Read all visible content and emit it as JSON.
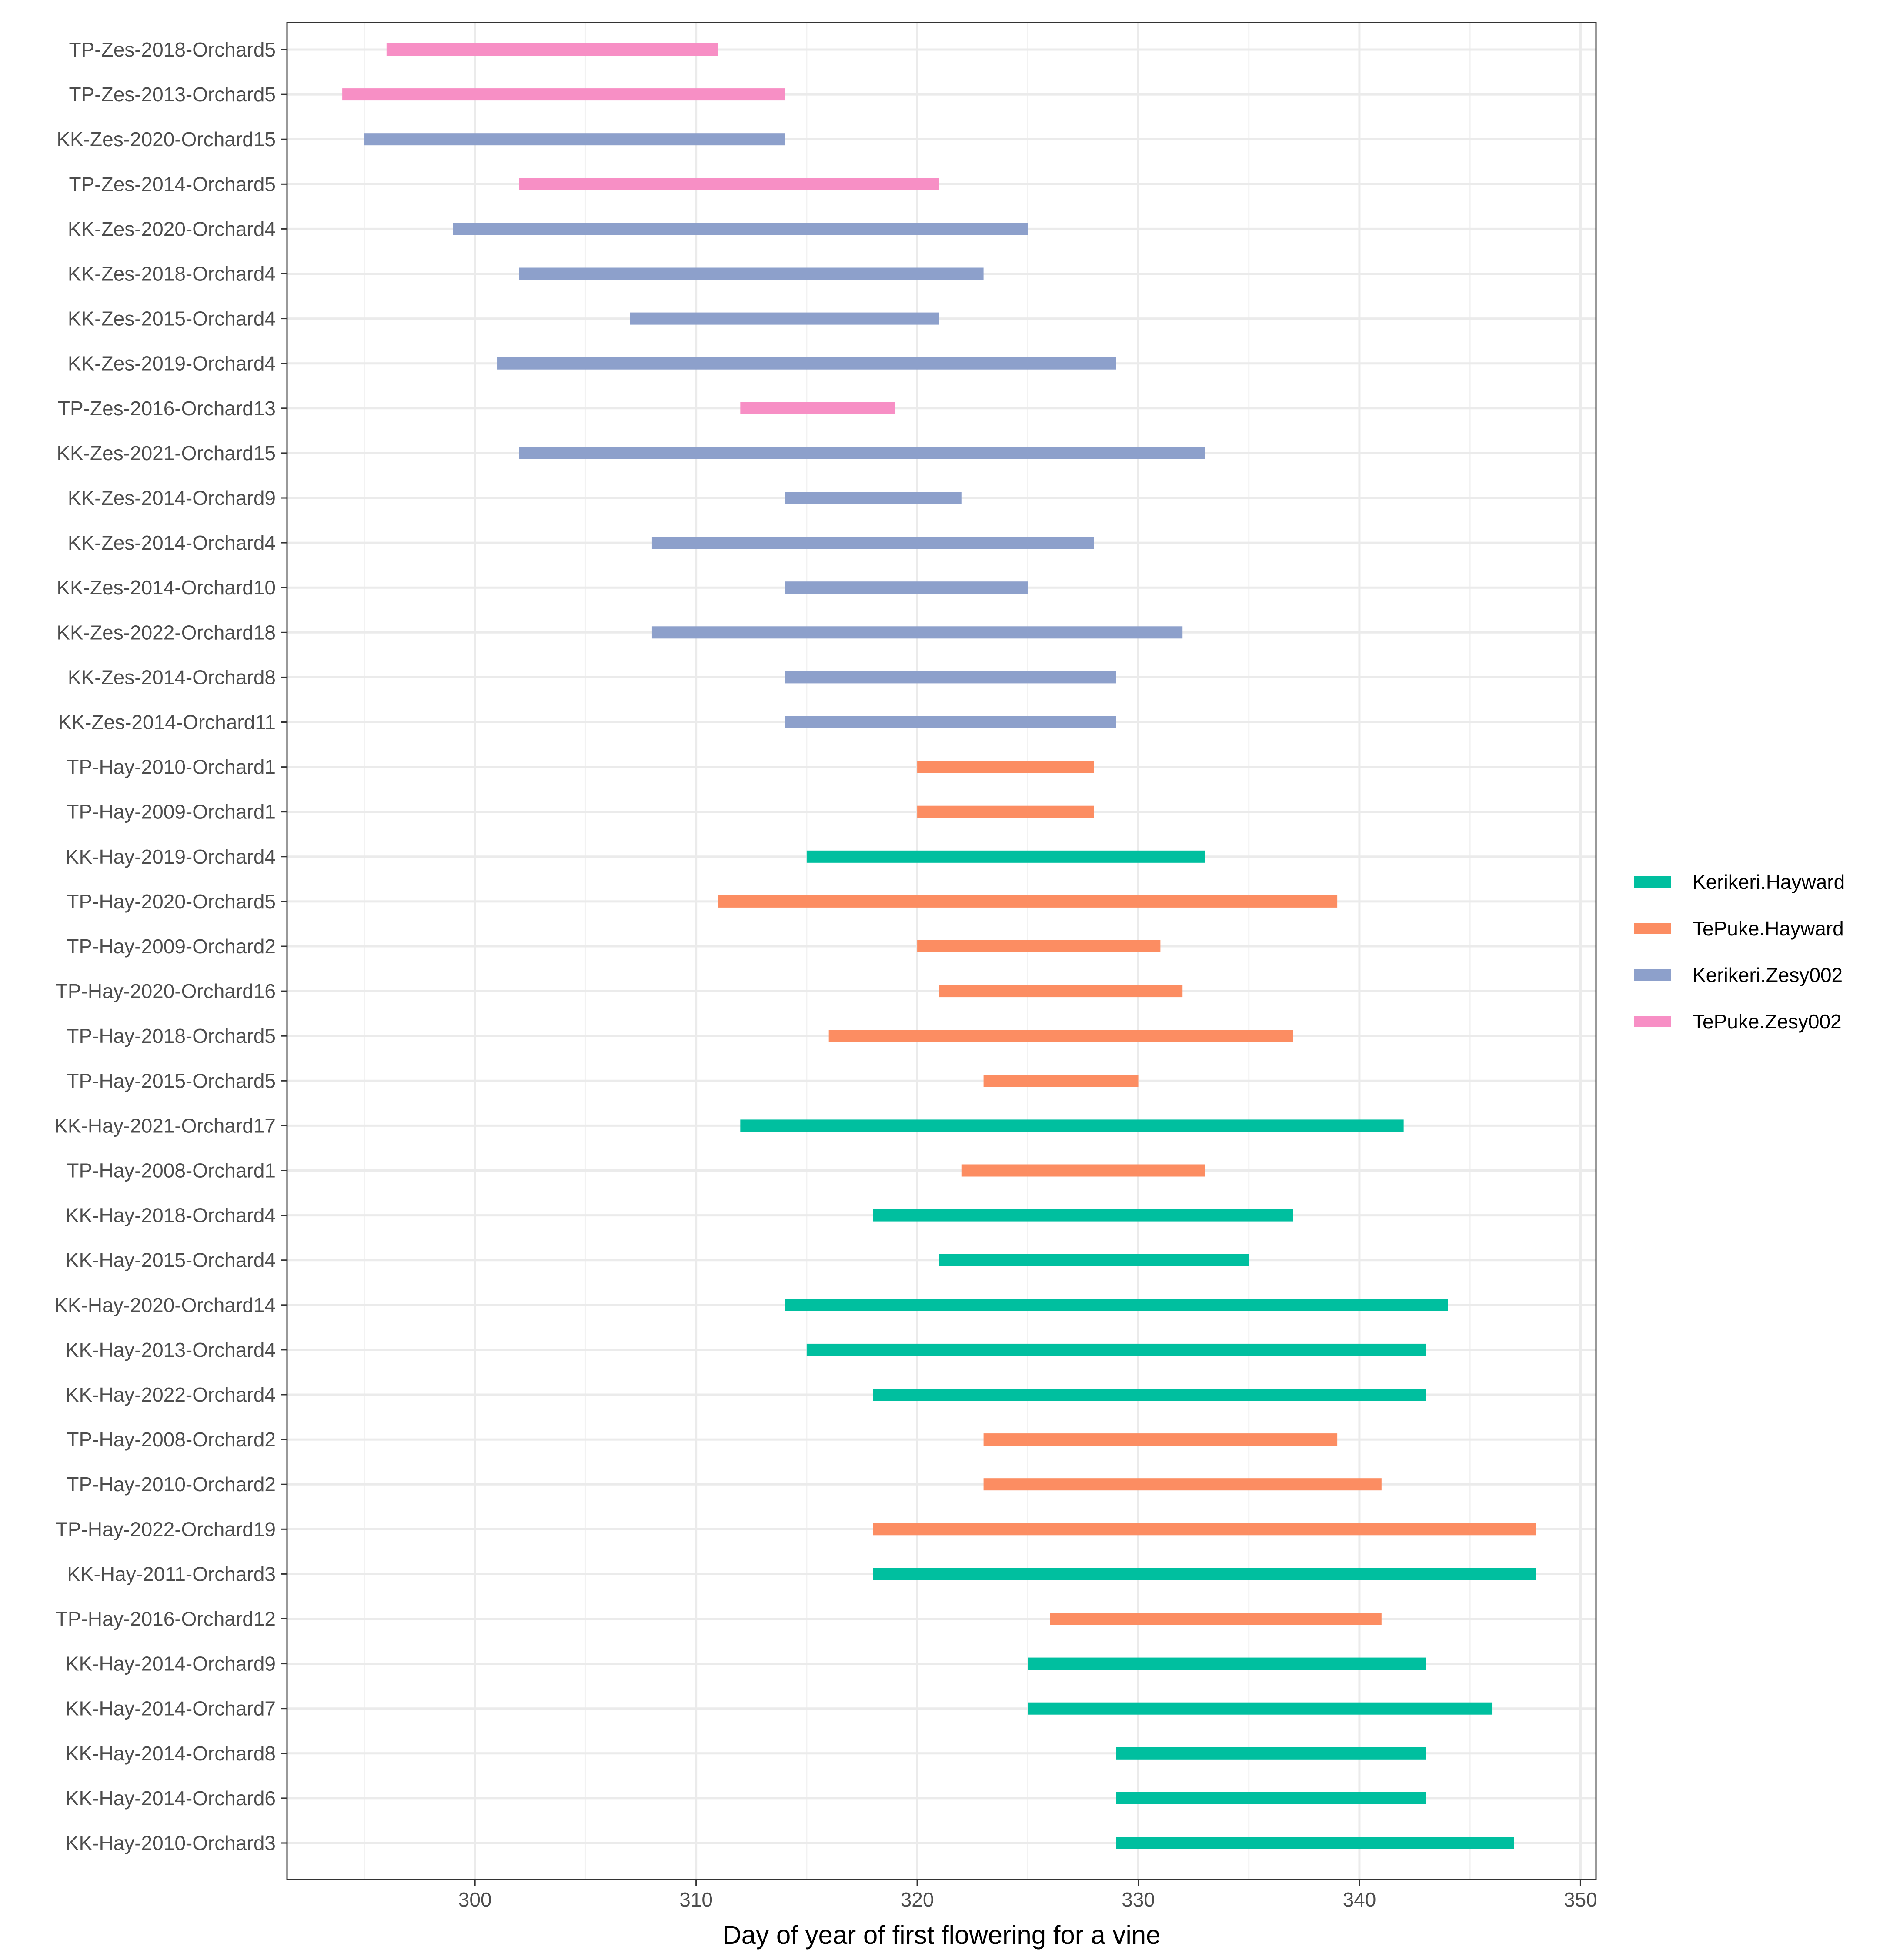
{
  "chart_data": {
    "type": "range-bar",
    "title": "",
    "xlabel": "Day of year of first flowering for a vine",
    "ylabel": "",
    "xlim": [
      291.5,
      350.7
    ],
    "xticks": [
      300,
      310,
      320,
      330,
      340,
      350
    ],
    "grid": true,
    "legend_position": "right",
    "series": [
      {
        "name": "Kerikeri.Hayward",
        "color": "#00bf9f"
      },
      {
        "name": "TePuke.Hayward",
        "color": "#fc8d62"
      },
      {
        "name": "Kerikeri.Zesy002",
        "color": "#8da0cb"
      },
      {
        "name": "TePuke.Zesy002",
        "color": "#f78fc5"
      }
    ],
    "rows": [
      {
        "label": "TP-Zes-2018-Orchard5",
        "start": 296,
        "end": 311,
        "series": "TePuke.Zesy002"
      },
      {
        "label": "TP-Zes-2013-Orchard5",
        "start": 294,
        "end": 314,
        "series": "TePuke.Zesy002"
      },
      {
        "label": "KK-Zes-2020-Orchard15",
        "start": 295,
        "end": 314,
        "series": "Kerikeri.Zesy002"
      },
      {
        "label": "TP-Zes-2014-Orchard5",
        "start": 302,
        "end": 321,
        "series": "TePuke.Zesy002"
      },
      {
        "label": "KK-Zes-2020-Orchard4",
        "start": 299,
        "end": 325,
        "series": "Kerikeri.Zesy002"
      },
      {
        "label": "KK-Zes-2018-Orchard4",
        "start": 302,
        "end": 323,
        "series": "Kerikeri.Zesy002"
      },
      {
        "label": "KK-Zes-2015-Orchard4",
        "start": 307,
        "end": 321,
        "series": "Kerikeri.Zesy002"
      },
      {
        "label": "KK-Zes-2019-Orchard4",
        "start": 301,
        "end": 329,
        "series": "Kerikeri.Zesy002"
      },
      {
        "label": "TP-Zes-2016-Orchard13",
        "start": 312,
        "end": 319,
        "series": "TePuke.Zesy002"
      },
      {
        "label": "KK-Zes-2021-Orchard15",
        "start": 302,
        "end": 333,
        "series": "Kerikeri.Zesy002"
      },
      {
        "label": "KK-Zes-2014-Orchard9",
        "start": 314,
        "end": 322,
        "series": "Kerikeri.Zesy002"
      },
      {
        "label": "KK-Zes-2014-Orchard4",
        "start": 308,
        "end": 328,
        "series": "Kerikeri.Zesy002"
      },
      {
        "label": "KK-Zes-2014-Orchard10",
        "start": 314,
        "end": 325,
        "series": "Kerikeri.Zesy002"
      },
      {
        "label": "KK-Zes-2022-Orchard18",
        "start": 308,
        "end": 332,
        "series": "Kerikeri.Zesy002"
      },
      {
        "label": "KK-Zes-2014-Orchard8",
        "start": 314,
        "end": 329,
        "series": "Kerikeri.Zesy002"
      },
      {
        "label": "KK-Zes-2014-Orchard11",
        "start": 314,
        "end": 329,
        "series": "Kerikeri.Zesy002"
      },
      {
        "label": "TP-Hay-2010-Orchard1",
        "start": 320,
        "end": 328,
        "series": "TePuke.Hayward"
      },
      {
        "label": "TP-Hay-2009-Orchard1",
        "start": 320,
        "end": 328,
        "series": "TePuke.Hayward"
      },
      {
        "label": "KK-Hay-2019-Orchard4",
        "start": 315,
        "end": 333,
        "series": "Kerikeri.Hayward"
      },
      {
        "label": "TP-Hay-2020-Orchard5",
        "start": 311,
        "end": 339,
        "series": "TePuke.Hayward"
      },
      {
        "label": "TP-Hay-2009-Orchard2",
        "start": 320,
        "end": 331,
        "series": "TePuke.Hayward"
      },
      {
        "label": "TP-Hay-2020-Orchard16",
        "start": 321,
        "end": 332,
        "series": "TePuke.Hayward"
      },
      {
        "label": "TP-Hay-2018-Orchard5",
        "start": 316,
        "end": 337,
        "series": "TePuke.Hayward"
      },
      {
        "label": "TP-Hay-2015-Orchard5",
        "start": 323,
        "end": 330,
        "series": "TePuke.Hayward"
      },
      {
        "label": "KK-Hay-2021-Orchard17",
        "start": 312,
        "end": 342,
        "series": "Kerikeri.Hayward"
      },
      {
        "label": "TP-Hay-2008-Orchard1",
        "start": 322,
        "end": 333,
        "series": "TePuke.Hayward"
      },
      {
        "label": "KK-Hay-2018-Orchard4",
        "start": 318,
        "end": 337,
        "series": "Kerikeri.Hayward"
      },
      {
        "label": "KK-Hay-2015-Orchard4",
        "start": 321,
        "end": 335,
        "series": "Kerikeri.Hayward"
      },
      {
        "label": "KK-Hay-2020-Orchard14",
        "start": 314,
        "end": 344,
        "series": "Kerikeri.Hayward"
      },
      {
        "label": "KK-Hay-2013-Orchard4",
        "start": 315,
        "end": 343,
        "series": "Kerikeri.Hayward"
      },
      {
        "label": "KK-Hay-2022-Orchard4",
        "start": 318,
        "end": 343,
        "series": "Kerikeri.Hayward"
      },
      {
        "label": "TP-Hay-2008-Orchard2",
        "start": 323,
        "end": 339,
        "series": "TePuke.Hayward"
      },
      {
        "label": "TP-Hay-2010-Orchard2",
        "start": 323,
        "end": 341,
        "series": "TePuke.Hayward"
      },
      {
        "label": "TP-Hay-2022-Orchard19",
        "start": 318,
        "end": 348,
        "series": "TePuke.Hayward"
      },
      {
        "label": "KK-Hay-2011-Orchard3",
        "start": 318,
        "end": 348,
        "series": "Kerikeri.Hayward"
      },
      {
        "label": "TP-Hay-2016-Orchard12",
        "start": 326,
        "end": 341,
        "series": "TePuke.Hayward"
      },
      {
        "label": "KK-Hay-2014-Orchard9",
        "start": 325,
        "end": 343,
        "series": "Kerikeri.Hayward"
      },
      {
        "label": "KK-Hay-2014-Orchard7",
        "start": 325,
        "end": 346,
        "series": "Kerikeri.Hayward"
      },
      {
        "label": "KK-Hay-2014-Orchard8",
        "start": 329,
        "end": 343,
        "series": "Kerikeri.Hayward"
      },
      {
        "label": "KK-Hay-2014-Orchard6",
        "start": 329,
        "end": 343,
        "series": "Kerikeri.Hayward"
      },
      {
        "label": "KK-Hay-2010-Orchard3",
        "start": 329,
        "end": 347,
        "series": "Kerikeri.Hayward"
      }
    ]
  }
}
